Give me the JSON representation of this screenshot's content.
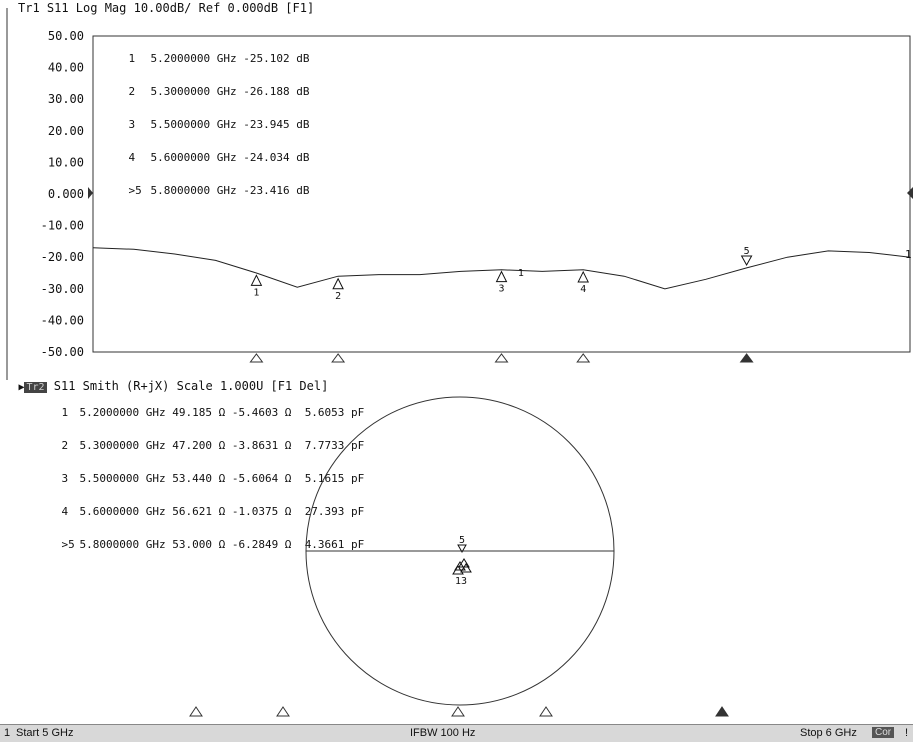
{
  "trace1": {
    "header": "Tr1 S11 Log Mag 10.00dB/ Ref 0.000dB [F1]",
    "y_ticks": [
      "50.00",
      "40.00",
      "30.00",
      "20.00",
      "10.00",
      "0.000",
      "-10.00",
      "-20.00",
      "-30.00",
      "-40.00",
      "-50.00"
    ],
    "markers": [
      {
        "num": "1",
        "freq": "5.2000000 GHz",
        "value": "-25.102",
        "unit": "dB"
      },
      {
        "num": "2",
        "freq": "5.3000000 GHz",
        "value": "-26.188",
        "unit": "dB"
      },
      {
        "num": "3",
        "freq": "5.5000000 GHz",
        "value": "-23.945",
        "unit": "dB"
      },
      {
        "num": "4",
        "freq": "5.6000000 GHz",
        "value": "-24.034",
        "unit": "dB"
      },
      {
        "num": ">5",
        "freq": "5.8000000 GHz",
        "value": "-23.416",
        "unit": "dB"
      }
    ],
    "marker_labels": [
      "1",
      "2",
      "3",
      "4",
      "5"
    ],
    "trace_label": "1",
    "extra_label": "1"
  },
  "trace2": {
    "badge": "Tr2",
    "header": "S11 Smith (R+jX) Scale 1.000U [F1 Del]",
    "markers": [
      {
        "num": "1",
        "freq": "5.2000000 GHz",
        "r": "49.185 Ω",
        "x": "-5.4603 Ω",
        "c": "5.6053 pF"
      },
      {
        "num": "2",
        "freq": "5.3000000 GHz",
        "r": "47.200 Ω",
        "x": "-3.8631 Ω",
        "c": "7.7733 pF"
      },
      {
        "num": "3",
        "freq": "5.5000000 GHz",
        "r": "53.440 Ω",
        "x": "-5.6064 Ω",
        "c": "5.1615 pF"
      },
      {
        "num": "4",
        "freq": "5.6000000 GHz",
        "r": "56.621 Ω",
        "x": "-1.0375 Ω",
        "c": "27.393 pF"
      },
      {
        "num": ">5",
        "freq": "5.8000000 GHz",
        "r": "53.000 Ω",
        "x": "-6.2849 Ω",
        "c": "4.3661 pF"
      }
    ],
    "cluster_labels": [
      "5",
      "13"
    ]
  },
  "chart_data": [
    {
      "type": "line",
      "title": "Tr1 S11 Log Mag 10.00dB/ Ref 0.000dB [F1]",
      "xlabel": "",
      "ylabel": "",
      "xlim": [
        5.0,
        6.0
      ],
      "ylim": [
        -50,
        50
      ],
      "grid": false,
      "series": [
        {
          "x": [
            5.0,
            5.05,
            5.1,
            5.15,
            5.2,
            5.25,
            5.3,
            5.35,
            5.4,
            5.45,
            5.5,
            5.55,
            5.6,
            5.65,
            5.7,
            5.75,
            5.8,
            5.85,
            5.9,
            5.95,
            6.0
          ],
          "values": [
            -17,
            -17.5,
            -19,
            -21,
            -25,
            -29.5,
            -26,
            -25.5,
            -25.5,
            -24.5,
            -24,
            -24.5,
            -24,
            -26,
            -30,
            -27,
            -23.4,
            -20,
            -18,
            -18.5,
            -20
          ]
        }
      ],
      "markers": [
        {
          "label": "1",
          "x": 5.2,
          "y": -25.102
        },
        {
          "label": "2",
          "x": 5.3,
          "y": -26.188
        },
        {
          "label": "3",
          "x": 5.5,
          "y": -23.945
        },
        {
          "label": "4",
          "x": 5.6,
          "y": -24.034
        },
        {
          "label": "5",
          "x": 5.8,
          "y": -23.416
        }
      ]
    }
  ],
  "status": {
    "channel": "1",
    "start": "Start 5 GHz",
    "ifbw": "IFBW 100 Hz",
    "stop": "Stop 6 GHz",
    "cor": "Cor",
    "end_mark": "!"
  }
}
